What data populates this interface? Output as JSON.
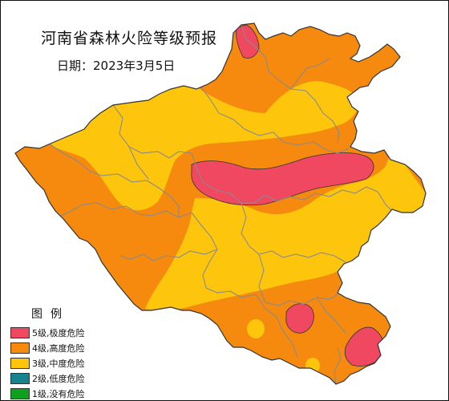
{
  "map": {
    "title": "河南省森林火险等级预报",
    "date_text": "日期：2023年3月5日"
  },
  "colors": {
    "level5": "#f04860",
    "level4": "#f58a0e",
    "level3": "#fdc60c",
    "level2": "#16848e",
    "level1": "#10a020",
    "boundary": "#8a8a8a",
    "outline": "#333333"
  },
  "legend": {
    "title": "图例",
    "items": [
      {
        "label": "5级,极度危险",
        "color": "#f04860",
        "level": 5
      },
      {
        "label": "4级,高度危险",
        "color": "#f58a0e",
        "level": 4
      },
      {
        "label": "3级,中度危险",
        "color": "#fdc60c",
        "level": 3
      },
      {
        "label": "2级,低度危险",
        "color": "#16848e",
        "level": 2
      },
      {
        "label": "1级,没有危险",
        "color": "#10a020",
        "level": 1
      }
    ]
  }
}
